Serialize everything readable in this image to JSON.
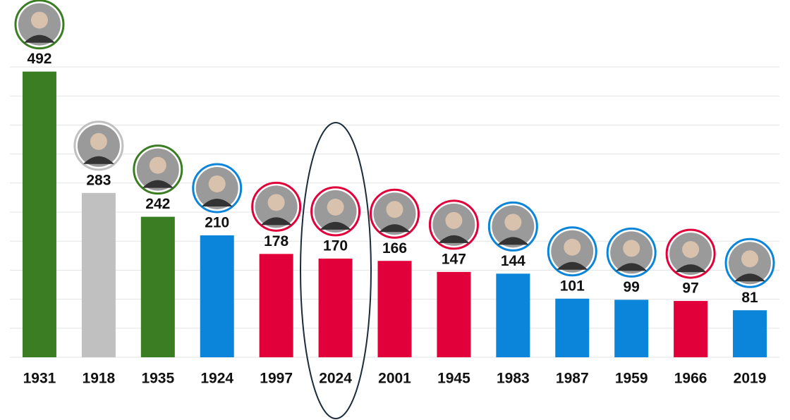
{
  "chart_data": {
    "type": "bar",
    "categories": [
      "1931",
      "1918",
      "1935",
      "1924",
      "1997",
      "2024",
      "2001",
      "1945",
      "1983",
      "1987",
      "1959",
      "1966",
      "2019"
    ],
    "values": [
      492,
      283,
      242,
      210,
      178,
      170,
      166,
      147,
      144,
      101,
      99,
      97,
      81
    ],
    "colors": [
      "#3a7d23",
      "#c0c0c0",
      "#3a7d23",
      "#0a85d9",
      "#e2003a",
      "#e2003a",
      "#e2003a",
      "#e2003a",
      "#0a85d9",
      "#0a85d9",
      "#0a85d9",
      "#e2003a",
      "#0a85d9"
    ],
    "ylim": [
      0,
      500
    ],
    "yticks": [
      0,
      50,
      100,
      150,
      200,
      250,
      300,
      350,
      400,
      450,
      500
    ],
    "grid": true
  }
}
